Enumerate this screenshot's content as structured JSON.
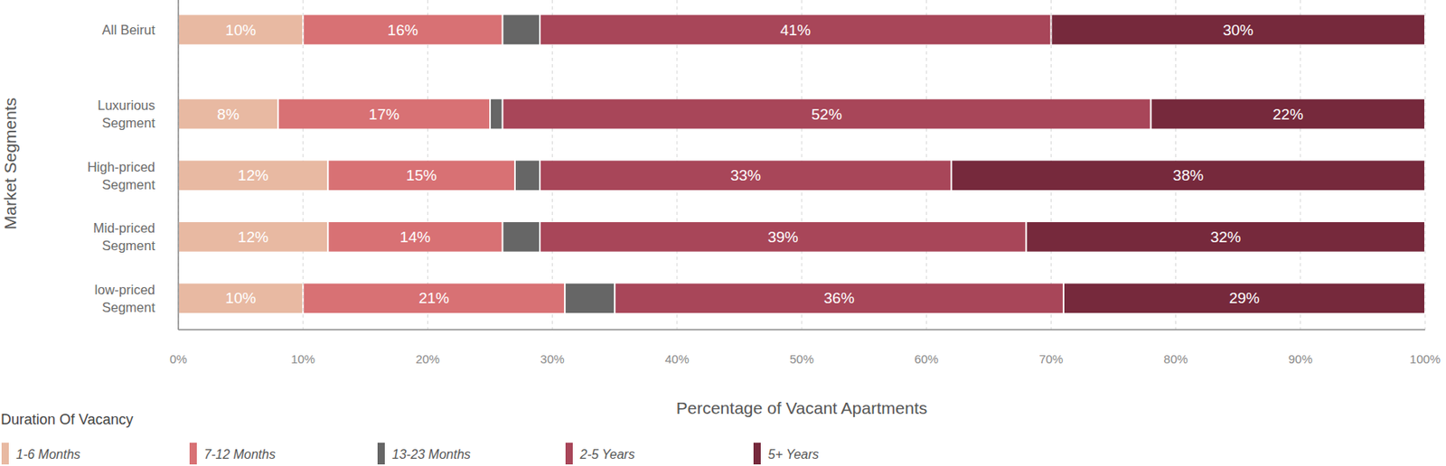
{
  "chart_data": {
    "type": "bar",
    "orientation": "horizontal",
    "stacked": true,
    "data_labels": true,
    "grid": true,
    "legend": "bottom-left",
    "legend_title": "Duration Of Vacancy",
    "x_label": "Percentage of Vacant Apartments",
    "y_label": "Market Segments",
    "categories": [
      "All Beirut",
      "Luxurious\nSegment",
      "High-priced\nSegment",
      "Mid-priced\nSegment",
      "low-priced\nSegment"
    ],
    "xlim": [
      0,
      100
    ],
    "xticks": [
      {
        "value": 0,
        "label": "0%"
      },
      {
        "value": 10,
        "label": "10%"
      },
      {
        "value": 20,
        "label": "20%"
      },
      {
        "value": 30,
        "label": "30%"
      },
      {
        "value": 40,
        "label": "40%"
      },
      {
        "value": 50,
        "label": "50%"
      },
      {
        "value": 60,
        "label": "60%"
      },
      {
        "value": 70,
        "label": "70%"
      },
      {
        "value": 80,
        "label": "80%"
      },
      {
        "value": 90,
        "label": "90%"
      },
      {
        "value": 100,
        "label": "100%"
      }
    ],
    "series": [
      {
        "name": "1-6 Months",
        "color": "#e8b9a2",
        "values": [
          10,
          8,
          12,
          12,
          10
        ],
        "value_labels": [
          "10%",
          "8%",
          "12%",
          "12%",
          "10%"
        ]
      },
      {
        "name": "7-12 Months",
        "color": "#d87174",
        "values": [
          16,
          17,
          15,
          14,
          21
        ],
        "value_labels": [
          "16%",
          "17%",
          "15%",
          "14%",
          "21%"
        ]
      },
      {
        "name": "13-23 Months",
        "color": "#666666",
        "values": [
          3,
          1,
          2,
          3,
          4
        ],
        "data_labels": false
      },
      {
        "name": "2-5 Years",
        "color": "#a84659",
        "values": [
          41,
          52,
          33,
          39,
          36
        ],
        "value_labels": [
          "41%",
          "52%",
          "33%",
          "39%",
          "36%"
        ]
      },
      {
        "name": "5+ Years",
        "color": "#76293c",
        "values": [
          30,
          22,
          38,
          32,
          29
        ],
        "value_labels": [
          "30%",
          "22%",
          "38%",
          "32%",
          "29%"
        ]
      }
    ]
  }
}
